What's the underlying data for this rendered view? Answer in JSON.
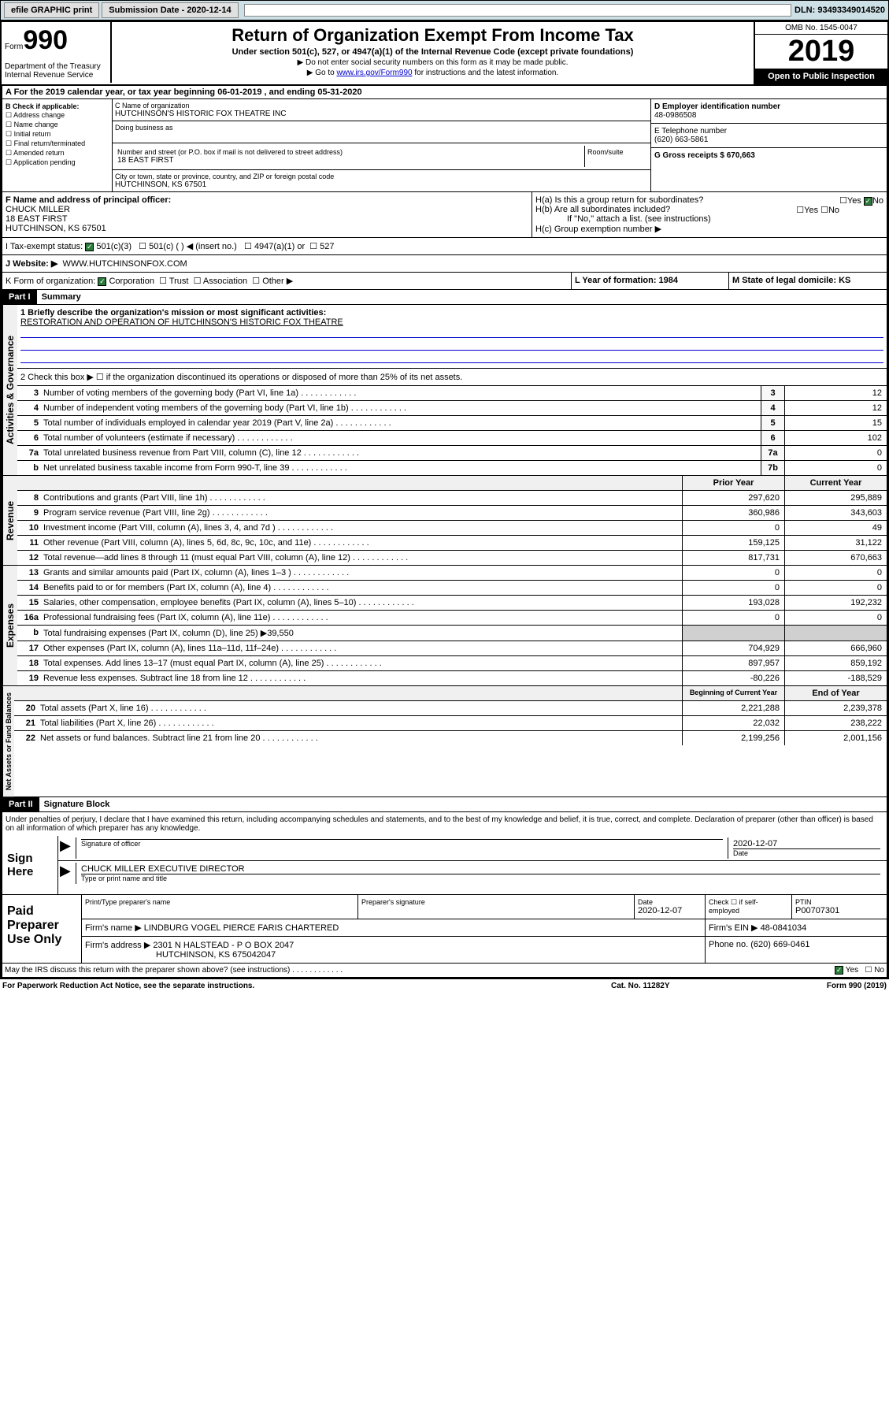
{
  "topbar": {
    "efile": "efile GRAPHIC print",
    "submission_label": "Submission Date - 2020-12-14",
    "dln": "DLN: 93493349014520"
  },
  "header": {
    "form_prefix": "Form",
    "form_num": "990",
    "title": "Return of Organization Exempt From Income Tax",
    "subtitle": "Under section 501(c), 527, or 4947(a)(1) of the Internal Revenue Code (except private foundations)",
    "instr1": "▶ Do not enter social security numbers on this form as it may be made public.",
    "instr2_pre": "▶ Go to ",
    "instr2_link": "www.irs.gov/Form990",
    "instr2_post": " for instructions and the latest information.",
    "dept": "Department of the Treasury\nInternal Revenue Service",
    "omb": "OMB No. 1545-0047",
    "year": "2019",
    "open": "Open to Public Inspection"
  },
  "line_a": "A For the 2019 calendar year, or tax year beginning 06-01-2019   , and ending 05-31-2020",
  "section_b": {
    "label": "B Check if applicable:",
    "opts": [
      "Address change",
      "Name change",
      "Initial return",
      "Final return/terminated",
      "Amended return",
      "Application pending"
    ]
  },
  "section_c": {
    "name_label": "C Name of organization",
    "name": "HUTCHINSON'S HISTORIC FOX THEATRE INC",
    "dba_label": "Doing business as",
    "addr_label": "Number and street (or P.O. box if mail is not delivered to street address)",
    "room_label": "Room/suite",
    "addr": "18 EAST FIRST",
    "city_label": "City or town, state or province, country, and ZIP or foreign postal code",
    "city": "HUTCHINSON, KS  67501"
  },
  "section_d": {
    "label": "D Employer identification number",
    "val": "48-0986508"
  },
  "section_e": {
    "label": "E Telephone number",
    "val": "(620) 663-5861"
  },
  "section_g": {
    "label": "G Gross receipts $ 670,663"
  },
  "section_f": {
    "label": "F  Name and address of principal officer:",
    "name": "CHUCK MILLER",
    "addr": "18 EAST FIRST",
    "city": "HUTCHINSON, KS  67501"
  },
  "section_h": {
    "ha": "H(a)  Is this a group return for subordinates?",
    "hb": "H(b)  Are all subordinates included?",
    "hb_note": "If \"No,\" attach a list. (see instructions)",
    "hc": "H(c)  Group exemption number ▶"
  },
  "tax_status": {
    "label": "I     Tax-exempt status:",
    "opt1": "501(c)(3)",
    "opt2": "501(c) (  ) ◀ (insert no.)",
    "opt3": "4947(a)(1) or",
    "opt4": "527"
  },
  "website": {
    "label": "J     Website: ▶",
    "val": "WWW.HUTCHINSONFOX.COM"
  },
  "line_k": {
    "label": "K Form of organization:",
    "corp": "Corporation",
    "trust": "Trust",
    "assoc": "Association",
    "other": "Other ▶"
  },
  "line_l": {
    "label": "L Year of formation: 1984"
  },
  "line_m": {
    "label": "M State of legal domicile: KS"
  },
  "part1": {
    "tag": "Part I",
    "title": "Summary",
    "gov_label": "Activities & Governance",
    "rev_label": "Revenue",
    "exp_label": "Expenses",
    "na_label": "Net Assets or Fund Balances",
    "mission_label": "1  Briefly describe the organization's mission or most significant activities:",
    "mission": "RESTORATION AND OPERATION OF HUTCHINSON'S HISTORIC FOX THEATRE",
    "line2": "2    Check this box ▶ ☐  if the organization discontinued its operations or disposed of more than 25% of its net assets.",
    "lines": [
      {
        "n": "3",
        "label": "Number of voting members of the governing body (Part VI, line 1a)",
        "box": "3",
        "v": "12"
      },
      {
        "n": "4",
        "label": "Number of independent voting members of the governing body (Part VI, line 1b)",
        "box": "4",
        "v": "12"
      },
      {
        "n": "5",
        "label": "Total number of individuals employed in calendar year 2019 (Part V, line 2a)",
        "box": "5",
        "v": "15"
      },
      {
        "n": "6",
        "label": "Total number of volunteers (estimate if necessary)",
        "box": "6",
        "v": "102"
      },
      {
        "n": "7a",
        "label": "Total unrelated business revenue from Part VIII, column (C), line 12",
        "box": "7a",
        "v": "0"
      },
      {
        "n": "b",
        "label": "Net unrelated business taxable income from Form 990-T, line 39",
        "box": "7b",
        "v": "0"
      }
    ],
    "prior_hdr": "Prior Year",
    "current_hdr": "Current Year",
    "rev_lines": [
      {
        "n": "8",
        "label": "Contributions and grants (Part VIII, line 1h)",
        "p": "297,620",
        "c": "295,889"
      },
      {
        "n": "9",
        "label": "Program service revenue (Part VIII, line 2g)",
        "p": "360,986",
        "c": "343,603"
      },
      {
        "n": "10",
        "label": "Investment income (Part VIII, column (A), lines 3, 4, and 7d )",
        "p": "0",
        "c": "49"
      },
      {
        "n": "11",
        "label": "Other revenue (Part VIII, column (A), lines 5, 6d, 8c, 9c, 10c, and 11e)",
        "p": "159,125",
        "c": "31,122"
      },
      {
        "n": "12",
        "label": "Total revenue—add lines 8 through 11 (must equal Part VIII, column (A), line 12)",
        "p": "817,731",
        "c": "670,663"
      }
    ],
    "exp_lines": [
      {
        "n": "13",
        "label": "Grants and similar amounts paid (Part IX, column (A), lines 1–3 )",
        "p": "0",
        "c": "0"
      },
      {
        "n": "14",
        "label": "Benefits paid to or for members (Part IX, column (A), line 4)",
        "p": "0",
        "c": "0"
      },
      {
        "n": "15",
        "label": "Salaries, other compensation, employee benefits (Part IX, column (A), lines 5–10)",
        "p": "193,028",
        "c": "192,232"
      },
      {
        "n": "16a",
        "label": "Professional fundraising fees (Part IX, column (A), line 11e)",
        "p": "0",
        "c": "0"
      },
      {
        "n": "b",
        "label": "Total fundraising expenses (Part IX, column (D), line 25) ▶39,550",
        "p": "",
        "c": "",
        "shaded": true
      },
      {
        "n": "17",
        "label": "Other expenses (Part IX, column (A), lines 11a–11d, 11f–24e)",
        "p": "704,929",
        "c": "666,960"
      },
      {
        "n": "18",
        "label": "Total expenses. Add lines 13–17 (must equal Part IX, column (A), line 25)",
        "p": "897,957",
        "c": "859,192"
      },
      {
        "n": "19",
        "label": "Revenue less expenses. Subtract line 18 from line 12",
        "p": "-80,226",
        "c": "-188,529"
      }
    ],
    "beg_hdr": "Beginning of Current Year",
    "end_hdr": "End of Year",
    "na_lines": [
      {
        "n": "20",
        "label": "Total assets (Part X, line 16)",
        "p": "2,221,288",
        "c": "2,239,378"
      },
      {
        "n": "21",
        "label": "Total liabilities (Part X, line 26)",
        "p": "22,032",
        "c": "238,222"
      },
      {
        "n": "22",
        "label": "Net assets or fund balances. Subtract line 21 from line 20",
        "p": "2,199,256",
        "c": "2,001,156"
      }
    ]
  },
  "part2": {
    "tag": "Part II",
    "title": "Signature Block",
    "penalty": "Under penalties of perjury, I declare that I have examined this return, including accompanying schedules and statements, and to the best of my knowledge and belief, it is true, correct, and complete. Declaration of preparer (other than officer) is based on all information of which preparer has any knowledge.",
    "sign_here": "Sign Here",
    "sig_officer": "Signature of officer",
    "date1": "2020-12-07",
    "date_label": "Date",
    "name_title": "CHUCK MILLER  EXECUTIVE DIRECTOR",
    "type_label": "Type or print name and title",
    "paid_label": "Paid Preparer Use Only",
    "prep_name_hdr": "Print/Type preparer's name",
    "prep_sig_hdr": "Preparer's signature",
    "date_hdr": "Date",
    "date2": "2020-12-07",
    "check_self": "Check ☐ if self-employed",
    "ptin_label": "PTIN",
    "ptin": "P00707301",
    "firm_name_label": "Firm's name    ▶",
    "firm_name": "LINDBURG VOGEL PIERCE FARIS CHARTERED",
    "firm_ein_label": "Firm's EIN ▶",
    "firm_ein": "48-0841034",
    "firm_addr_label": "Firm's address ▶",
    "firm_addr": "2301 N HALSTEAD - P O BOX 2047",
    "firm_city": "HUTCHINSON, KS  675042047",
    "phone_label": "Phone no.",
    "phone": "(620) 669-0461",
    "discuss": "May the IRS discuss this return with the preparer shown above? (see instructions)",
    "yes": "Yes",
    "no": "No"
  },
  "footer": {
    "paperwork": "For Paperwork Reduction Act Notice, see the separate instructions.",
    "cat": "Cat. No. 11282Y",
    "form": "Form 990 (2019)"
  }
}
